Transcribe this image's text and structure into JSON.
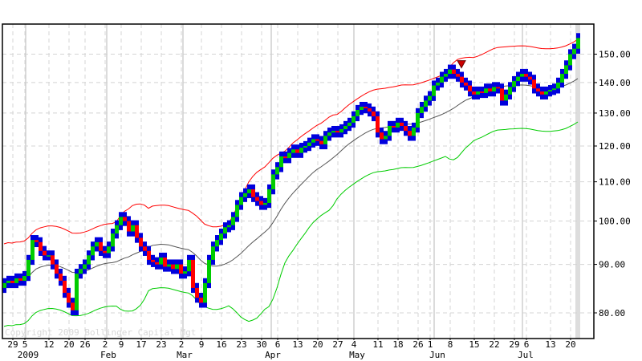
{
  "chart_data": {
    "type": "ohlc-bar",
    "y_scale": "log",
    "ylim": [
      75,
      160
    ],
    "y_ticks": [
      "80.00",
      "90.00",
      "100.00",
      "110.00",
      "120.00",
      "130.00",
      "140.00",
      "150.00"
    ],
    "grid": true,
    "overlays": [
      "bollinger-upper",
      "bollinger-middle",
      "bollinger-lower"
    ],
    "colors": {
      "range": "#0000dd",
      "up_body": "#00cc00",
      "down_body": "#ff0000",
      "upper_band": "#ff0000",
      "middle_band": "#555555",
      "lower_band": "#00cc00",
      "marker": "#cc0000",
      "grid": "#d4d4d4",
      "last_bar_highlight": "#dddddd"
    },
    "close": [
      86,
      86.5,
      86,
      87,
      86.5,
      87.5,
      91,
      95.5,
      95,
      93,
      92,
      92,
      90,
      88,
      86.5,
      84,
      82,
      80.5,
      88,
      89,
      90,
      92,
      94,
      95,
      93,
      92.5,
      94,
      97,
      99,
      101,
      100,
      97.5,
      99,
      96,
      94,
      93,
      91,
      90.5,
      90,
      91.5,
      89.5,
      90,
      89,
      90,
      88,
      88.5,
      91,
      85,
      83,
      82,
      86,
      91,
      94,
      95.5,
      97,
      98.5,
      99,
      101,
      104,
      106,
      107,
      108,
      106,
      105,
      104,
      104.5,
      108,
      112,
      114,
      117,
      116.5,
      118,
      119,
      118,
      119.5,
      120,
      121,
      122,
      121.5,
      120.5,
      123,
      124,
      124.5,
      124,
      125,
      126,
      127,
      129,
      131,
      132,
      131.5,
      130.5,
      129,
      124,
      122,
      123,
      126,
      125.5,
      127,
      126,
      124.5,
      123,
      125.5,
      130,
      132,
      134,
      135.5,
      139,
      140,
      142,
      143,
      144.5,
      143,
      142,
      140,
      139,
      137,
      136,
      137,
      136.5,
      138,
      137,
      138.5,
      138,
      134,
      136,
      138.5,
      140.5,
      142,
      143,
      142,
      141,
      138,
      137,
      136,
      137,
      137.5,
      138,
      140,
      143,
      146,
      150,
      152,
      156
    ],
    "open": [
      85,
      86,
      86.5,
      86,
      87,
      86.5,
      87.5,
      91,
      95.5,
      95,
      93,
      92,
      92,
      90,
      88,
      86.5,
      84,
      82,
      80.5,
      88,
      89,
      90,
      92,
      94,
      95,
      93,
      92.5,
      94,
      97,
      99,
      101,
      100,
      97.5,
      99,
      96,
      94,
      93,
      91,
      90.5,
      90,
      91.5,
      89.5,
      90,
      89,
      90,
      88,
      88.5,
      91,
      85,
      83,
      82,
      86,
      91,
      94,
      95.5,
      97,
      98.5,
      99,
      101,
      104,
      106,
      107,
      108,
      106,
      105,
      104,
      104.5,
      108,
      112,
      114,
      117,
      116.5,
      118,
      119,
      118,
      119.5,
      120,
      121,
      122,
      121.5,
      120.5,
      123,
      124,
      124.5,
      124,
      125,
      126,
      127,
      129,
      131,
      132,
      131.5,
      130.5,
      129,
      124,
      122,
      123,
      126,
      125.5,
      127,
      126,
      124.5,
      123,
      125.5,
      130,
      132,
      134,
      135.5,
      139,
      140,
      142,
      143,
      144.5,
      143,
      142,
      140,
      139,
      137,
      136,
      137,
      136.5,
      138,
      137,
      138.5,
      138,
      134,
      136,
      138.5,
      140.5,
      142,
      143,
      142,
      141,
      138,
      137,
      136,
      137,
      137.5,
      138,
      140,
      143,
      146,
      150,
      152
    ],
    "signal_markers": [
      {
        "bar_index": 114,
        "type": "sell"
      }
    ],
    "x_ticks": [
      {
        "label": "29",
        "bar_index": 3
      },
      {
        "label": "5",
        "bar_index": 6
      },
      {
        "label": "12",
        "bar_index": 12
      },
      {
        "label": "20",
        "bar_index": 17
      },
      {
        "label": "26",
        "bar_index": 21
      },
      {
        "label": "2",
        "bar_index": 26
      },
      {
        "label": "9",
        "bar_index": 30
      },
      {
        "label": "17",
        "bar_index": 35
      },
      {
        "label": "23",
        "bar_index": 40
      },
      {
        "label": "2",
        "bar_index": 45
      },
      {
        "label": "9",
        "bar_index": 50
      },
      {
        "label": "16",
        "bar_index": 55
      },
      {
        "label": "23",
        "bar_index": 60
      },
      {
        "label": "30",
        "bar_index": 65
      },
      {
        "label": "6",
        "bar_index": 69
      },
      {
        "label": "13",
        "bar_index": 74
      },
      {
        "label": "20",
        "bar_index": 79
      },
      {
        "label": "27",
        "bar_index": 84
      },
      {
        "label": "4",
        "bar_index": 88
      },
      {
        "label": "11",
        "bar_index": 94
      },
      {
        "label": "18",
        "bar_index": 99
      },
      {
        "label": "26",
        "bar_index": 104
      },
      {
        "label": "1",
        "bar_index": 107
      },
      {
        "label": "8",
        "bar_index": 112
      },
      {
        "label": "15",
        "bar_index": 118
      },
      {
        "label": "22",
        "bar_index": 123
      },
      {
        "label": "29",
        "bar_index": 128
      },
      {
        "label": "6",
        "bar_index": 131
      },
      {
        "label": "13",
        "bar_index": 137
      },
      {
        "label": "20",
        "bar_index": 142
      }
    ],
    "month_labels": [
      {
        "label": "2009",
        "bar_index": 6
      },
      {
        "label": "Feb",
        "bar_index": 26
      },
      {
        "label": "Mar",
        "bar_index": 45
      },
      {
        "label": "Apr",
        "bar_index": 67
      },
      {
        "label": "May",
        "bar_index": 88
      },
      {
        "label": "Jun",
        "bar_index": 108
      },
      {
        "label": "Jul",
        "bar_index": 130
      }
    ],
    "month_start_bar_index": [
      5.4,
      25.6,
      44.6,
      66.6,
      87.2,
      107.2,
      129.2
    ],
    "copyright": "Copyright 2009 Bollinger Capital Mgt"
  }
}
